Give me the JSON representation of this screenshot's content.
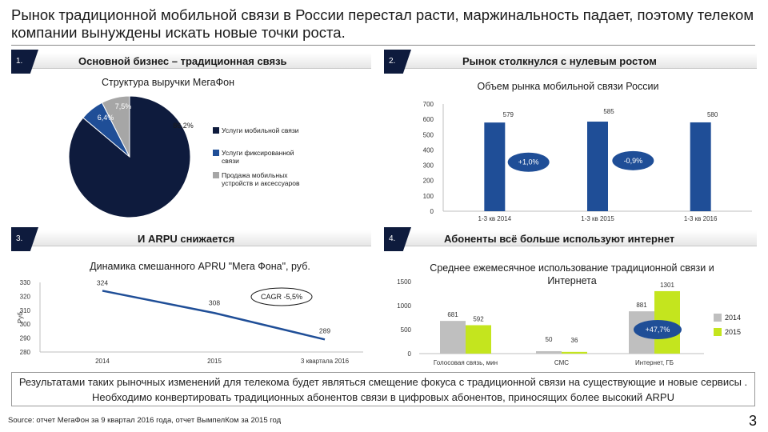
{
  "title": "Рынок традиционной мобильной связи в России перестал расти, маржинальность падает, поэтому телеком компании вынуждены искать новые точки роста.",
  "sections": [
    {
      "num": "1.",
      "heading": "Основной бизнес – традиционная связь"
    },
    {
      "num": "2.",
      "heading": "Рынок столкнулся с нулевым ростом"
    },
    {
      "num": "3.",
      "heading": "И ARPU снижается"
    },
    {
      "num": "4.",
      "heading": "Абоненты всё больше используют интернет"
    }
  ],
  "colors": {
    "navy": "#0e1b3d",
    "blue": "#1f4e97",
    "gray": "#a6a6a6",
    "lime": "#c4e51e",
    "lightgray": "#bfbfbf"
  },
  "chart_data": [
    {
      "type": "pie",
      "title": "Структура выручки МегаФон",
      "labels": [
        "Услуги мобильной связи",
        "Услуги фиксированной связи",
        "Продажа мобильных устройств и аксессуаров"
      ],
      "values": [
        86.2,
        6.4,
        7.5
      ],
      "value_labels": [
        "86,2%",
        "6,4%",
        "7,5%"
      ],
      "colors": [
        "#0e1b3d",
        "#1f4e97",
        "#a6a6a6"
      ],
      "legend": "right"
    },
    {
      "type": "bar",
      "title": "Объем рынка мобильной связи России",
      "categories": [
        "1-3 кв 2014",
        "1-3 кв 2015",
        "1-3 кв 2016"
      ],
      "values": [
        579,
        585,
        580
      ],
      "ylim": [
        0,
        700
      ],
      "yticks": [
        0,
        100,
        200,
        300,
        400,
        500,
        600,
        700
      ],
      "color": "#1f4e97",
      "annotations": [
        "+1,0%",
        "-0,9%"
      ]
    },
    {
      "type": "line",
      "title": "Динамика смешанного APRU \"Мега Фона\", руб.",
      "ylabel": "Руб.",
      "categories": [
        "2014",
        "2015",
        "3 квартала 2016"
      ],
      "values": [
        324,
        308,
        289
      ],
      "ylim": [
        280,
        330
      ],
      "yticks": [
        280,
        290,
        300,
        310,
        320,
        330
      ],
      "color": "#1f4e97",
      "annotation": "CAGR -5,5%"
    },
    {
      "type": "bar",
      "title": "Среднее ежемесячное использование традиционной связи и Интернета",
      "categories": [
        "Голосовая связь, мин",
        "СМС",
        "Интернет, ГБ"
      ],
      "series": [
        {
          "name": "2014",
          "values": [
            681,
            50,
            881
          ],
          "color": "#bfbfbf"
        },
        {
          "name": "2015",
          "values": [
            592,
            36,
            1301
          ],
          "color": "#c4e51e"
        }
      ],
      "ylim": [
        0,
        1500
      ],
      "yticks": [
        0,
        500,
        1000,
        1500
      ],
      "annotation": "+47,7%",
      "legend": "right"
    }
  ],
  "note": "Результатами таких рыночных изменений для телекома будет являться смещение фокуса с традиционной связи на существующие и новые сервисы . Необходимо конвертировать традиционных абонентов связи в цифровых абонентов, приносящих более высокий ARPU",
  "source": "Source: отчет МегаФон за 9 квартал 2016 года, отчет ВымпелКом за 2015 год",
  "page_number": "3"
}
